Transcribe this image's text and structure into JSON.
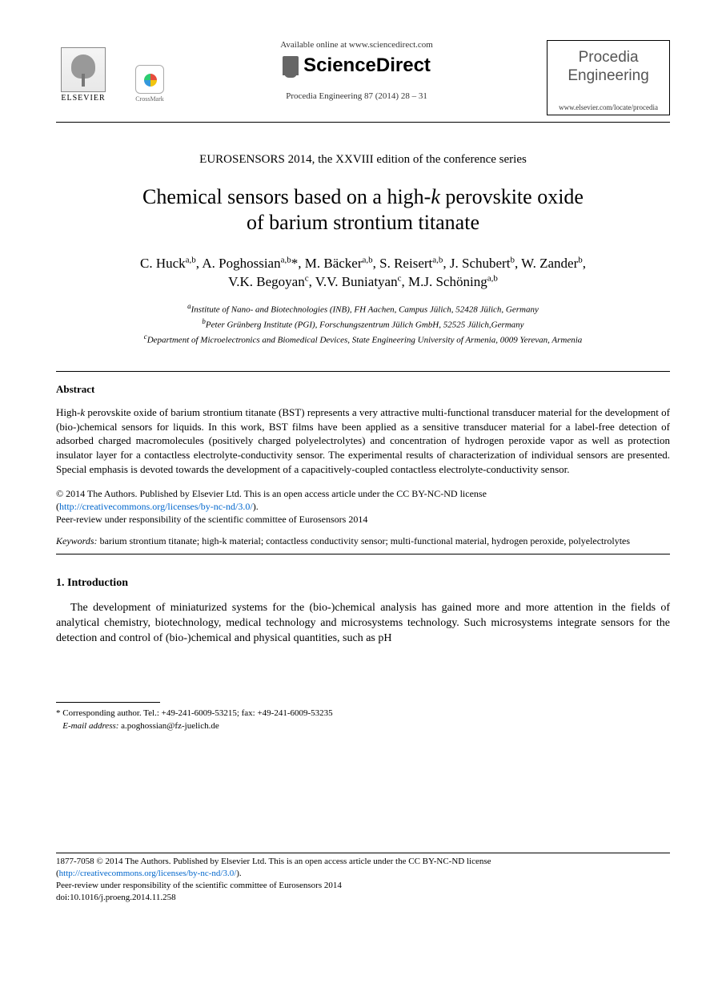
{
  "header": {
    "elsevier_label": "ELSEVIER",
    "crossmark_label": "CrossMark",
    "available_online": "Available online at www.sciencedirect.com",
    "sciencedirect": "ScienceDirect",
    "citation": "Procedia Engineering 87 (2014) 28 – 31",
    "journal_name_1": "Procedia",
    "journal_name_2": "Engineering",
    "journal_url": "www.elsevier.com/locate/procedia"
  },
  "conference": "EUROSENSORS 2014, the XXVIII edition of the conference series",
  "title_line1": "Chemical sensors based on a high-",
  "title_k": "k",
  "title_line1b": " perovskite oxide",
  "title_line2": "of barium strontium titanate",
  "authors_line1_parts": {
    "a1": "C. Huck",
    "s1": "a,b",
    "sep1": ", ",
    "a2": "A. Poghossian",
    "s2": "a,b",
    "star": "*",
    "sep2": ", ",
    "a3": "M. Bäcker",
    "s3": "a,b",
    "sep3": ", ",
    "a4": "S. Reisert",
    "s4": "a,b",
    "sep4": ", ",
    "a5": "J. Schubert",
    "s5": "b",
    "sep5": ", ",
    "a6": "W. Zander",
    "s6": "b",
    "sep6": ","
  },
  "authors_line2_parts": {
    "a7": "V.K. Begoyan",
    "s7": "c",
    "sep7": ", ",
    "a8": "V.V. Buniatyan",
    "s8": "c",
    "sep8": ", ",
    "a9": "M.J. Schöning",
    "s9": "a,b"
  },
  "affiliations": {
    "a_sup": "a",
    "a": "Institute of Nano- and Biotechnologies (INB), FH Aachen, Campus Jülich, 52428 Jülich, Germany",
    "b_sup": "b",
    "b": "Peter Grünberg Institute (PGI), Forschungszentrum Jülich GmbH, 52525 Jülich,Germany",
    "c_sup": "c",
    "c": "Department of Microelectronics and Biomedical Devices, State Engineering University of Armenia, 0009 Yerevan, Armenia"
  },
  "abstract": {
    "heading": "Abstract",
    "text_pre": "High-",
    "text_k": "k",
    "text_post": " perovskite oxide of barium strontium titanate (BST) represents a very attractive multi-functional transducer material for the development of (bio-)chemical sensors for liquids. In this work, BST films have been applied as a sensitive transducer material for a label-free detection of adsorbed charged macromolecules (positively charged polyelectrolytes) and concentration of hydrogen peroxide vapor as well as protection insulator layer for a contactless electrolyte-conductivity sensor. The experimental results of characterization of individual sensors are presented. Special emphasis is devoted towards the development of a capacitively-coupled contactless electrolyte-conductivity sensor."
  },
  "license": {
    "line1": "© 2014 The Authors. Published by Elsevier Ltd. This is an open access article under the CC BY-NC-ND license",
    "link_open": "(",
    "link": "http://creativecommons.org/licenses/by-nc-nd/3.0/",
    "link_close": ").",
    "line3": "Peer-review under responsibility of the scientific committee of Eurosensors 2014"
  },
  "keywords": {
    "label": "Keywords:",
    "text": " barium strontium titanate; high-k material; contactless conductivity sensor; multi-functional material, hydrogen peroxide, polyelectrolytes"
  },
  "section1": {
    "heading": "1. Introduction",
    "body": "The development of miniaturized systems for the (bio-)chemical analysis has gained more and more attention in the fields of analytical chemistry, biotechnology, medical technology and microsystems technology. Such microsystems integrate sensors for the detection and control of (bio-)chemical and physical quantities, such as pH"
  },
  "footnote": {
    "line1": "* Corresponding author. Tel.: +49-241-6009-53215; fax: +49-241-6009-53235",
    "email_label": "E-mail address:",
    "email": " a.poghossian@fz-juelich.de"
  },
  "footer": {
    "line1": "1877-7058 © 2014 The Authors. Published by Elsevier Ltd. This is an open access article under the CC BY-NC-ND license",
    "link_open": "(",
    "link": "http://creativecommons.org/licenses/by-nc-nd/3.0/",
    "link_close": ").",
    "line3": "Peer-review under responsibility of the scientific committee of Eurosensors 2014",
    "doi": "doi:10.1016/j.proeng.2014.11.258"
  },
  "colors": {
    "text": "#000000",
    "link": "#0066cc",
    "journal_gray": "#555555",
    "background": "#ffffff"
  }
}
